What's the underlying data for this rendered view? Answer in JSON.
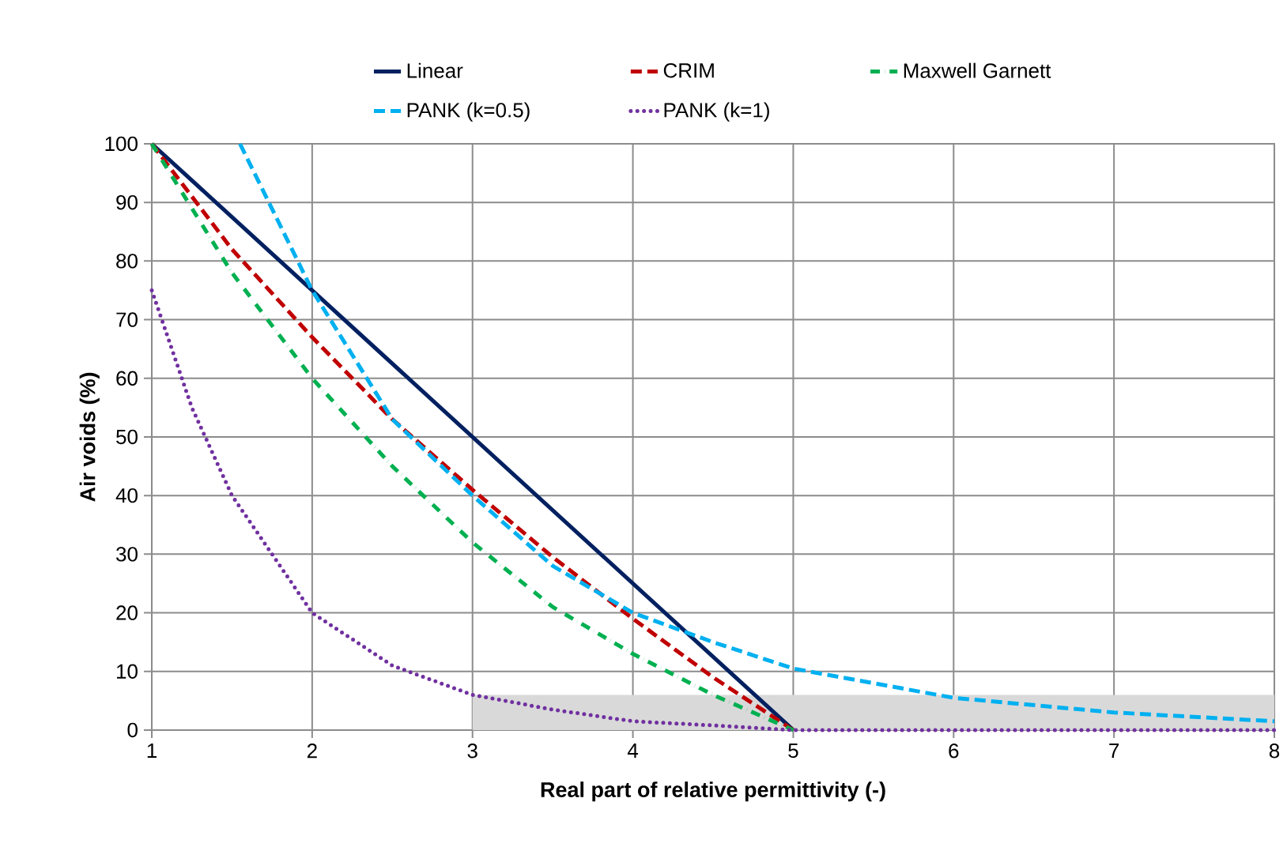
{
  "chart_data": {
    "type": "line",
    "xlabel": "Real part of relative permittivity  (-)",
    "ylabel": "Air voids (%)",
    "xlim": [
      1,
      8
    ],
    "xticks": [
      1,
      2,
      3,
      4,
      5,
      6,
      7,
      8
    ],
    "ylim": [
      0,
      100
    ],
    "yticks": [
      0,
      10,
      20,
      30,
      40,
      50,
      60,
      70,
      80,
      90,
      100
    ],
    "grid": true,
    "legend": "top",
    "marker": "none",
    "series": [
      {
        "type": "area",
        "color": "#d9d9d9",
        "x": [
          3,
          8
        ],
        "values": [
          6,
          6
        ]
      },
      {
        "name": "Linear",
        "color": "#002060",
        "line_style": "solid",
        "x": [
          1,
          5
        ],
        "values": [
          100,
          0
        ]
      },
      {
        "name": "CRIM",
        "color": "#c00000",
        "line_style": "dashed",
        "x": [
          1,
          1.5,
          2,
          2.5,
          3,
          3.5,
          4,
          4.5,
          5
        ],
        "values": [
          100,
          82,
          67,
          53,
          41,
          29.5,
          19,
          9,
          0
        ]
      },
      {
        "name": "Maxwell Garnett",
        "color": "#00b050",
        "line_style": "dashdot",
        "x": [
          1,
          1.5,
          2,
          2.5,
          3,
          3.5,
          4,
          4.5,
          5
        ],
        "values": [
          100,
          78,
          60,
          45,
          32,
          21,
          13,
          6,
          0
        ]
      },
      {
        "name": "PANK (k=0.5)",
        "color": "#00b0f0",
        "line_style": "dashed",
        "x": [
          1.55,
          2,
          2.5,
          3,
          3.5,
          4,
          4.5,
          5,
          6,
          7,
          8
        ],
        "values": [
          100,
          75,
          53,
          40,
          28,
          20,
          15,
          10.5,
          5.5,
          3,
          1.5
        ]
      },
      {
        "name": "PANK (k=1)",
        "color": "#7030a0",
        "line_style": "dotted",
        "x": [
          1,
          1.25,
          1.5,
          2,
          2.5,
          3,
          3.5,
          4,
          4.5,
          5,
          6,
          7,
          8
        ],
        "values": [
          75,
          55,
          40,
          20,
          11,
          6,
          3.5,
          1.5,
          0.8,
          0,
          0,
          0,
          0
        ]
      }
    ]
  }
}
